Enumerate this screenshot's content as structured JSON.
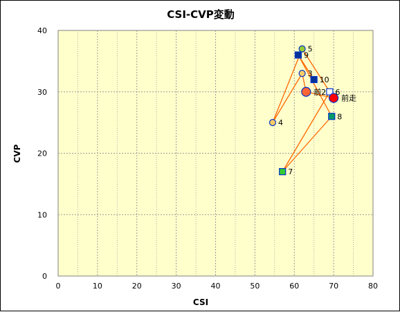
{
  "chart_data": {
    "type": "scatter",
    "title": "CSI-CVP変動",
    "xlabel": "CSI",
    "ylabel": "CVP",
    "xlim": [
      0,
      80
    ],
    "ylim": [
      0,
      40
    ],
    "x_ticks": [
      "0",
      "10",
      "20",
      "30",
      "40",
      "50",
      "60",
      "70",
      "80"
    ],
    "y_ticks": [
      "0",
      "10",
      "20",
      "30",
      "40"
    ],
    "grid": true,
    "minor_x_gridlines": true,
    "legend": "none",
    "colors": {
      "plot_bg": "#ffffcc",
      "grid": "#9a9a9a",
      "line": "#ff6600",
      "circle_fill": "#ffcc66",
      "circle_stroke": "#0033cc",
      "square_dark": "#003399",
      "square_light": "#ffffff",
      "square_green": "#33cc33",
      "square_teal": "#009966",
      "marker_green": "#99cc33",
      "marker_red": "#ff0000",
      "marker_orange": "#ff6633"
    },
    "path_order": [
      "前走",
      "前2",
      "3",
      "4",
      "5",
      "6",
      "7",
      "8",
      "9",
      "10"
    ],
    "points": [
      {
        "label": "前走",
        "x": 70.0,
        "y": 29.0,
        "marker": "big-circle",
        "color": "#ff0000"
      },
      {
        "label": "前2",
        "x": 63.0,
        "y": 30.0,
        "marker": "big-circle",
        "color": "#ff6633"
      },
      {
        "label": "3",
        "x": 62.0,
        "y": 33.0,
        "marker": "circle",
        "color": "#ffcc66"
      },
      {
        "label": "4",
        "x": 54.5,
        "y": 25.0,
        "marker": "circle",
        "color": "#ffcc66"
      },
      {
        "label": "5",
        "x": 62.0,
        "y": 37.0,
        "marker": "circle",
        "color": "#99cc33"
      },
      {
        "label": "6",
        "x": 69.0,
        "y": 30.0,
        "marker": "square",
        "color": "#ffffff"
      },
      {
        "label": "7",
        "x": 57.0,
        "y": 17.0,
        "marker": "square",
        "color": "#33cc33"
      },
      {
        "label": "8",
        "x": 69.5,
        "y": 26.0,
        "marker": "square",
        "color": "#009966"
      },
      {
        "label": "9",
        "x": 61.0,
        "y": 36.0,
        "marker": "square",
        "color": "#003399"
      },
      {
        "label": "10",
        "x": 65.0,
        "y": 32.0,
        "marker": "square",
        "color": "#003399"
      }
    ]
  }
}
